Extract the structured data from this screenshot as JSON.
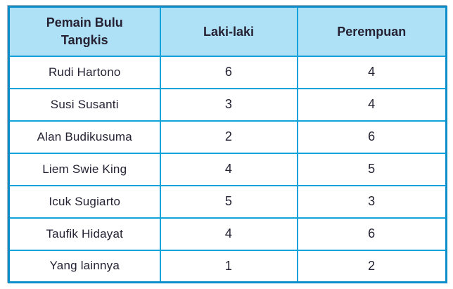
{
  "chart_data": {
    "type": "table",
    "columns": [
      "Pemain Bulu Tangkis",
      "Laki-laki",
      "Perempuan"
    ],
    "rows": [
      [
        "Rudi Hartono",
        "6",
        "4"
      ],
      [
        "Susi Susanti",
        "3",
        "4"
      ],
      [
        "Alan Budikusuma",
        "2",
        "6"
      ],
      [
        "Liem Swie King",
        "4",
        "5"
      ],
      [
        "Icuk Sugiarto",
        "5",
        "3"
      ],
      [
        "Taufik Hidayat",
        "4",
        "6"
      ],
      [
        "Yang lainnya",
        "1",
        "2"
      ]
    ],
    "series": [
      {
        "name": "Laki-laki",
        "values": [
          6,
          3,
          2,
          4,
          5,
          4,
          1
        ]
      },
      {
        "name": "Perempuan",
        "values": [
          4,
          4,
          6,
          5,
          3,
          6,
          2
        ]
      }
    ],
    "categories": [
      "Rudi Hartono",
      "Susi Susanti",
      "Alan Budikusuma",
      "Liem Swie King",
      "Icuk Sugiarto",
      "Taufik Hidayat",
      "Yang lainnya"
    ]
  },
  "colors": {
    "header_bg": "#aee1f6",
    "grid_line": "#14a2dc",
    "outer_border": "#0b8ec9",
    "text": "#262233"
  }
}
